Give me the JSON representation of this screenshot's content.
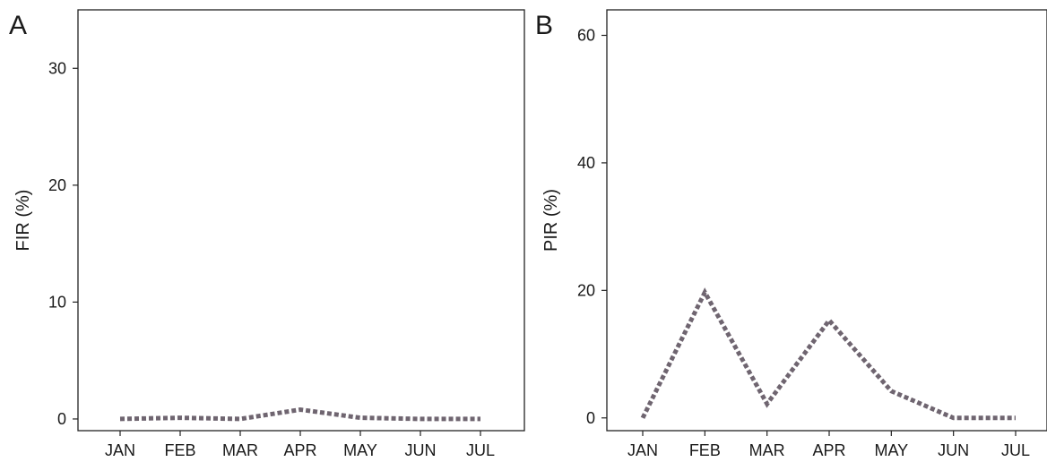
{
  "colors": {
    "series": "#6f6570",
    "axis": "#222222",
    "text": "#1a1a1a"
  },
  "chart_data": [
    {
      "panel_label": "A",
      "type": "line",
      "line_style": "dotted",
      "ylabel": "FIR (%)",
      "xlabel": "",
      "categories": [
        "JAN",
        "FEB",
        "MAR",
        "APR",
        "MAY",
        "JUN",
        "JUL"
      ],
      "yticks": [
        0,
        10,
        20,
        30
      ],
      "ylim": [
        -1,
        35
      ],
      "grid": false,
      "series": [
        {
          "values": [
            0,
            0.1,
            0,
            0.8,
            0.1,
            0,
            0
          ]
        }
      ]
    },
    {
      "panel_label": "B",
      "type": "line",
      "line_style": "dotted",
      "ylabel": "PIR (%)",
      "xlabel": "",
      "categories": [
        "JAN",
        "FEB",
        "MAR",
        "APR",
        "MAY",
        "JUN",
        "JUL"
      ],
      "yticks": [
        0,
        20,
        40,
        60
      ],
      "ylim": [
        -2,
        64
      ],
      "grid": false,
      "series": [
        {
          "values": [
            0,
            19.7,
            2.2,
            15.3,
            4.2,
            0,
            0
          ]
        }
      ]
    }
  ]
}
